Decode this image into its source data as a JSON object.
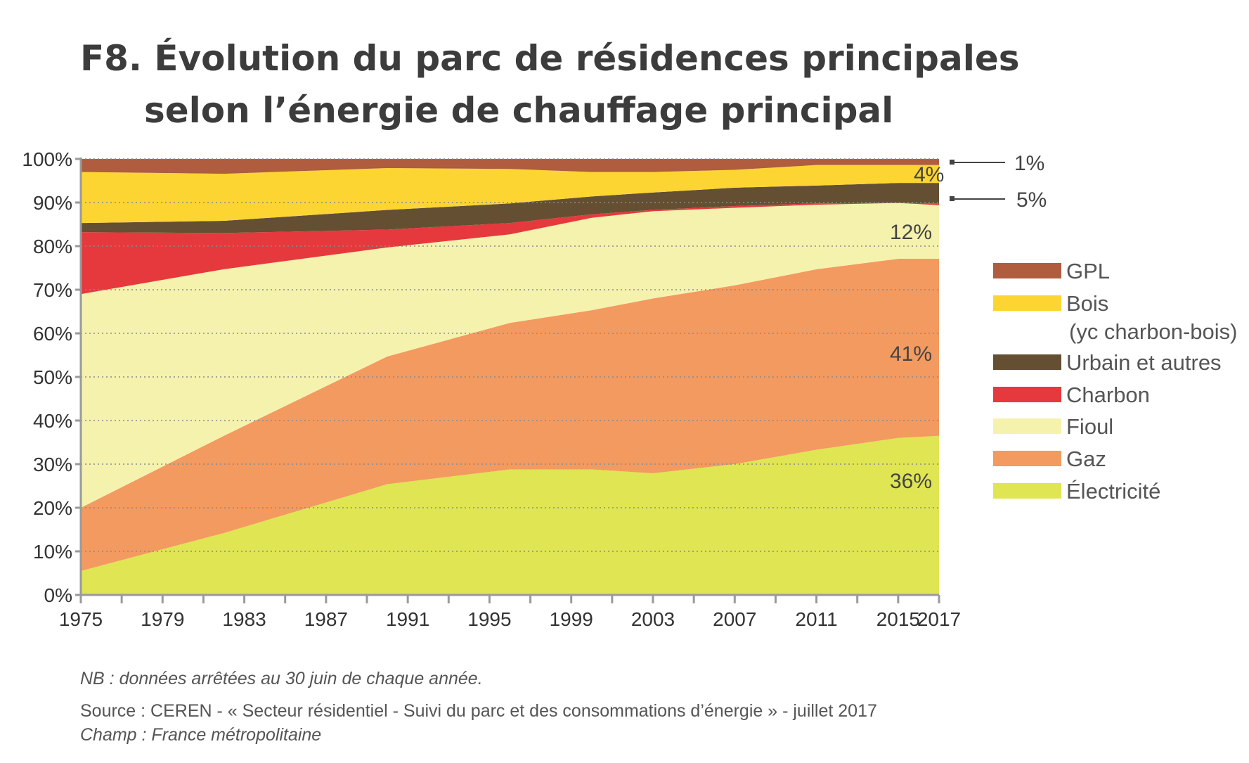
{
  "title_line1": "F8. Évolution du parc de résidences principales",
  "title_line2": "selon l’énergie de chauffage principal",
  "chart_data": {
    "type": "area",
    "stacked": true,
    "x": [
      1975,
      1982,
      1990,
      1996,
      2000,
      2003,
      2007,
      2011,
      2015,
      2017
    ],
    "series": [
      {
        "name": "Électricité",
        "color": "#dfe553",
        "values": [
          5.5,
          14.2,
          25.4,
          28.8,
          28.8,
          27.9,
          30.0,
          33.3,
          36.0,
          36.5
        ]
      },
      {
        "name": "Gaz",
        "color": "#f39a60",
        "values": [
          14.5,
          22.3,
          29.3,
          33.6,
          36.5,
          40.1,
          41.0,
          41.4,
          41.1,
          40.6
        ]
      },
      {
        "name": "Fioul",
        "color": "#f5f2ae",
        "values": [
          49.0,
          38.2,
          25.0,
          20.3,
          21.2,
          20.0,
          17.8,
          14.8,
          12.8,
          12.3
        ]
      },
      {
        "name": "Charbon",
        "color": "#e6393d",
        "values": [
          14.2,
          8.3,
          4.1,
          2.6,
          0.8,
          0.3,
          0.4,
          0.3,
          0.0,
          0.4
        ]
      },
      {
        "name": "Urbain et autres",
        "color": "#654f33",
        "values": [
          2.1,
          2.8,
          4.5,
          4.5,
          4.1,
          4.0,
          4.2,
          4.1,
          4.6,
          4.7
        ]
      },
      {
        "name": "Bois",
        "name_line2": "(yc charbon-bois)",
        "color": "#fdd532",
        "values": [
          11.7,
          10.8,
          9.6,
          7.9,
          5.6,
          4.7,
          4.1,
          4.7,
          4.1,
          4.1
        ]
      },
      {
        "name": "GPL",
        "color": "#b05c3e",
        "values": [
          3.0,
          3.4,
          2.1,
          2.3,
          3.0,
          3.0,
          2.5,
          1.4,
          1.4,
          1.4
        ]
      }
    ],
    "legend_order": [
      "GPL",
      "Bois",
      "Urbain et autres",
      "Charbon",
      "Fioul",
      "Gaz",
      "Électricité"
    ],
    "legend_placement": "right",
    "ylim": [
      0,
      100
    ],
    "xlim": [
      1975,
      2017
    ],
    "y_ticks": [
      "0%",
      "10%",
      "20%",
      "30%",
      "40%",
      "50%",
      "60%",
      "70%",
      "80%",
      "90%",
      "100%"
    ],
    "x_ticks": [
      "1975",
      "1979",
      "1983",
      "1987",
      "1991",
      "1995",
      "1999",
      "2003",
      "2007",
      "2011",
      "2015",
      "2017"
    ],
    "grid": "horizontal dotted",
    "annotations": {
      "bois": "4%",
      "fioul": "12%",
      "gaz": "41%",
      "electricite": "36%",
      "gpl_callout": "1%",
      "urbain_callout": "5%"
    }
  },
  "notes": {
    "nb": "NB : données arrêtées au 30 juin de chaque année.",
    "source": "Source : CEREN - « Secteur résidentiel - Suivi du parc et des consommations d’énergie » - juillet 2017",
    "champ": "Champ : France métropolitaine"
  }
}
